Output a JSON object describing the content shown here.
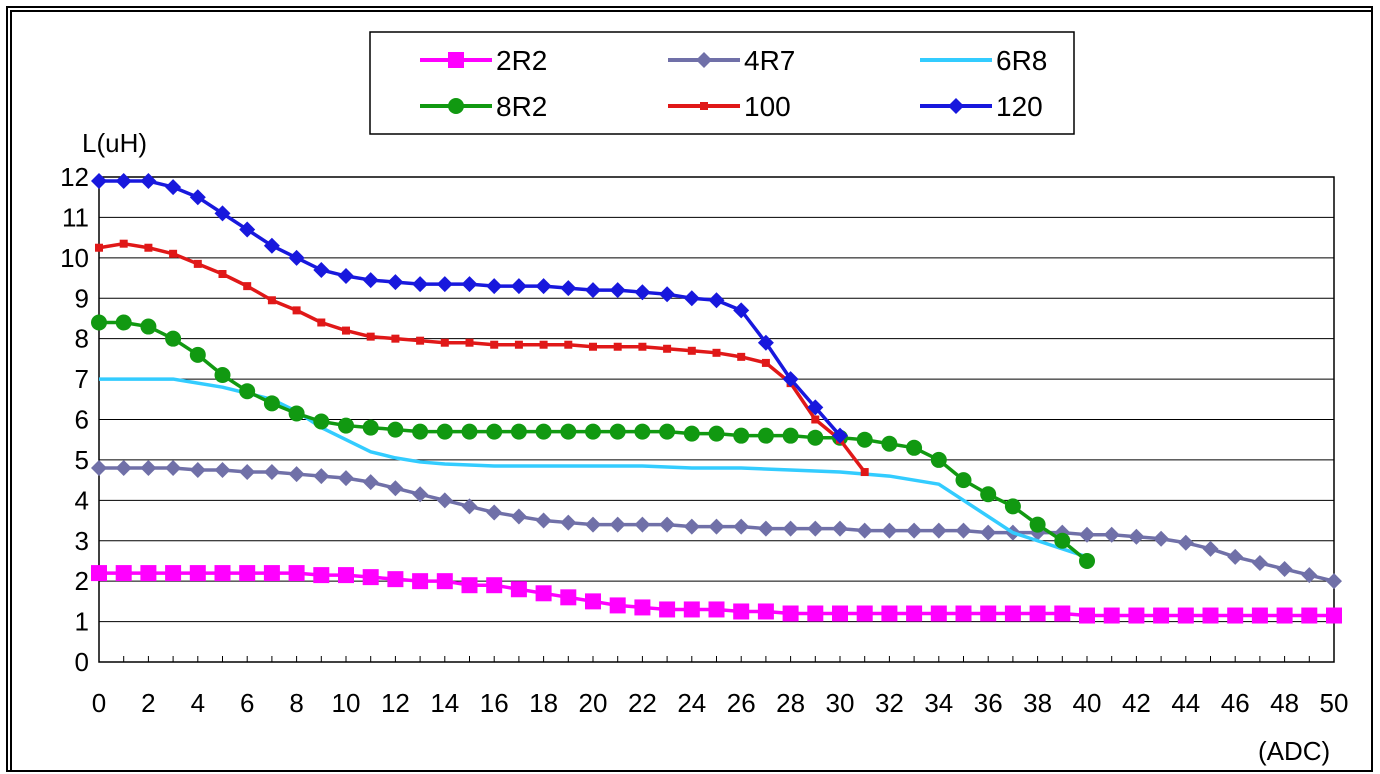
{
  "chart_data": {
    "type": "line",
    "ylabel": "L(uH)",
    "xlabel": "(ADC)",
    "xlim": [
      0,
      50
    ],
    "ylim": [
      0,
      12
    ],
    "x_ticks": [
      "0",
      "2",
      "4",
      "6",
      "8",
      "10",
      "12",
      "14",
      "16",
      "18",
      "20",
      "22",
      "24",
      "26",
      "28",
      "30",
      "32",
      "34",
      "36",
      "38",
      "40",
      "42",
      "44",
      "46",
      "48",
      "50"
    ],
    "y_ticks": [
      "0",
      "1",
      "2",
      "3",
      "4",
      "5",
      "6",
      "7",
      "8",
      "9",
      "10",
      "11",
      "12"
    ],
    "grid": "horizontal",
    "legend_position": "top",
    "series": [
      {
        "name": "2R2",
        "color": "#ff00ff",
        "marker": "square",
        "x": [
          0,
          1,
          2,
          3,
          4,
          5,
          6,
          7,
          8,
          9,
          10,
          11,
          12,
          13,
          14,
          15,
          16,
          17,
          18,
          19,
          20,
          21,
          22,
          23,
          24,
          25,
          26,
          27,
          28,
          29,
          30,
          31,
          32,
          33,
          34,
          35,
          36,
          37,
          38,
          39,
          40,
          41,
          42,
          43,
          44,
          45,
          46,
          47,
          48,
          49,
          50
        ],
        "y": [
          2.2,
          2.2,
          2.2,
          2.2,
          2.2,
          2.2,
          2.2,
          2.2,
          2.2,
          2.15,
          2.15,
          2.1,
          2.05,
          2.0,
          2.0,
          1.9,
          1.9,
          1.8,
          1.7,
          1.6,
          1.5,
          1.4,
          1.35,
          1.3,
          1.3,
          1.3,
          1.25,
          1.25,
          1.2,
          1.2,
          1.2,
          1.2,
          1.2,
          1.2,
          1.2,
          1.2,
          1.2,
          1.2,
          1.2,
          1.2,
          1.15,
          1.15,
          1.15,
          1.15,
          1.15,
          1.15,
          1.15,
          1.15,
          1.15,
          1.15,
          1.15
        ]
      },
      {
        "name": "4R7",
        "color": "#7070a8",
        "marker": "diamond",
        "x": [
          0,
          1,
          2,
          3,
          4,
          5,
          6,
          7,
          8,
          9,
          10,
          11,
          12,
          13,
          14,
          15,
          16,
          17,
          18,
          19,
          20,
          21,
          22,
          23,
          24,
          25,
          26,
          27,
          28,
          29,
          30,
          31,
          32,
          33,
          34,
          35,
          36,
          37,
          38,
          39,
          40,
          41,
          42,
          43,
          44,
          45,
          46,
          47,
          48,
          49,
          50
        ],
        "y": [
          4.8,
          4.8,
          4.8,
          4.8,
          4.75,
          4.75,
          4.7,
          4.7,
          4.65,
          4.6,
          4.55,
          4.45,
          4.3,
          4.15,
          4.0,
          3.85,
          3.7,
          3.6,
          3.5,
          3.45,
          3.4,
          3.4,
          3.4,
          3.4,
          3.35,
          3.35,
          3.35,
          3.3,
          3.3,
          3.3,
          3.3,
          3.25,
          3.25,
          3.25,
          3.25,
          3.25,
          3.2,
          3.2,
          3.2,
          3.2,
          3.15,
          3.15,
          3.1,
          3.05,
          2.95,
          2.8,
          2.6,
          2.45,
          2.3,
          2.15,
          2.0
        ]
      },
      {
        "name": "6R8",
        "color": "#33ccff",
        "marker": "none",
        "x": [
          0,
          2,
          3,
          5,
          7,
          8,
          9,
          10,
          11,
          12,
          13,
          14,
          16,
          18,
          20,
          22,
          24,
          26,
          28,
          30,
          32,
          34,
          35,
          36,
          37,
          38,
          39,
          40
        ],
        "y": [
          7.0,
          7.0,
          7.0,
          6.8,
          6.5,
          6.2,
          5.8,
          5.5,
          5.2,
          5.05,
          4.95,
          4.9,
          4.85,
          4.85,
          4.85,
          4.85,
          4.8,
          4.8,
          4.75,
          4.7,
          4.6,
          4.4,
          4.0,
          3.6,
          3.2,
          3.0,
          2.8,
          2.6
        ]
      },
      {
        "name": "8R2",
        "color": "#119911",
        "marker": "circle",
        "x": [
          0,
          1,
          2,
          3,
          4,
          5,
          6,
          7,
          8,
          9,
          10,
          11,
          12,
          13,
          14,
          15,
          16,
          17,
          18,
          19,
          20,
          21,
          22,
          23,
          24,
          25,
          26,
          27,
          28,
          29,
          30,
          31,
          32,
          33,
          34,
          35,
          36,
          37,
          38,
          39,
          40
        ],
        "y": [
          8.4,
          8.4,
          8.3,
          8.0,
          7.6,
          7.1,
          6.7,
          6.4,
          6.15,
          5.95,
          5.85,
          5.8,
          5.75,
          5.7,
          5.7,
          5.7,
          5.7,
          5.7,
          5.7,
          5.7,
          5.7,
          5.7,
          5.7,
          5.7,
          5.65,
          5.65,
          5.6,
          5.6,
          5.6,
          5.55,
          5.55,
          5.5,
          5.4,
          5.3,
          5.0,
          4.5,
          4.15,
          3.85,
          3.4,
          3.0,
          2.5
        ]
      },
      {
        "name": "100",
        "color": "#e01818",
        "marker": "square-small",
        "x": [
          0,
          1,
          2,
          3,
          4,
          5,
          6,
          7,
          8,
          9,
          10,
          11,
          12,
          13,
          14,
          15,
          16,
          17,
          18,
          19,
          20,
          21,
          22,
          23,
          24,
          25,
          26,
          27,
          28,
          29,
          30,
          31
        ],
        "y": [
          10.25,
          10.35,
          10.25,
          10.1,
          9.85,
          9.6,
          9.3,
          8.95,
          8.7,
          8.4,
          8.2,
          8.05,
          8.0,
          7.95,
          7.9,
          7.9,
          7.85,
          7.85,
          7.85,
          7.85,
          7.8,
          7.8,
          7.8,
          7.75,
          7.7,
          7.65,
          7.55,
          7.4,
          6.9,
          6.0,
          5.5,
          4.7
        ]
      },
      {
        "name": "120",
        "color": "#1818dd",
        "marker": "diamond",
        "x": [
          0,
          1,
          2,
          3,
          4,
          5,
          6,
          7,
          8,
          9,
          10,
          11,
          12,
          13,
          14,
          15,
          16,
          17,
          18,
          19,
          20,
          21,
          22,
          23,
          24,
          25,
          26,
          27,
          28,
          29,
          30
        ],
        "y": [
          11.9,
          11.9,
          11.9,
          11.75,
          11.5,
          11.1,
          10.7,
          10.3,
          10.0,
          9.7,
          9.55,
          9.45,
          9.4,
          9.35,
          9.35,
          9.35,
          9.3,
          9.3,
          9.3,
          9.25,
          9.2,
          9.2,
          9.15,
          9.1,
          9.0,
          8.95,
          8.7,
          7.9,
          7.0,
          6.3,
          5.6
        ]
      }
    ],
    "legend": [
      {
        "label": "2R2",
        "series": 0
      },
      {
        "label": "4R7",
        "series": 1
      },
      {
        "label": "6R8",
        "series": 2
      },
      {
        "label": "8R2",
        "series": 3
      },
      {
        "label": "100",
        "series": 4
      },
      {
        "label": "120",
        "series": 5
      }
    ]
  }
}
